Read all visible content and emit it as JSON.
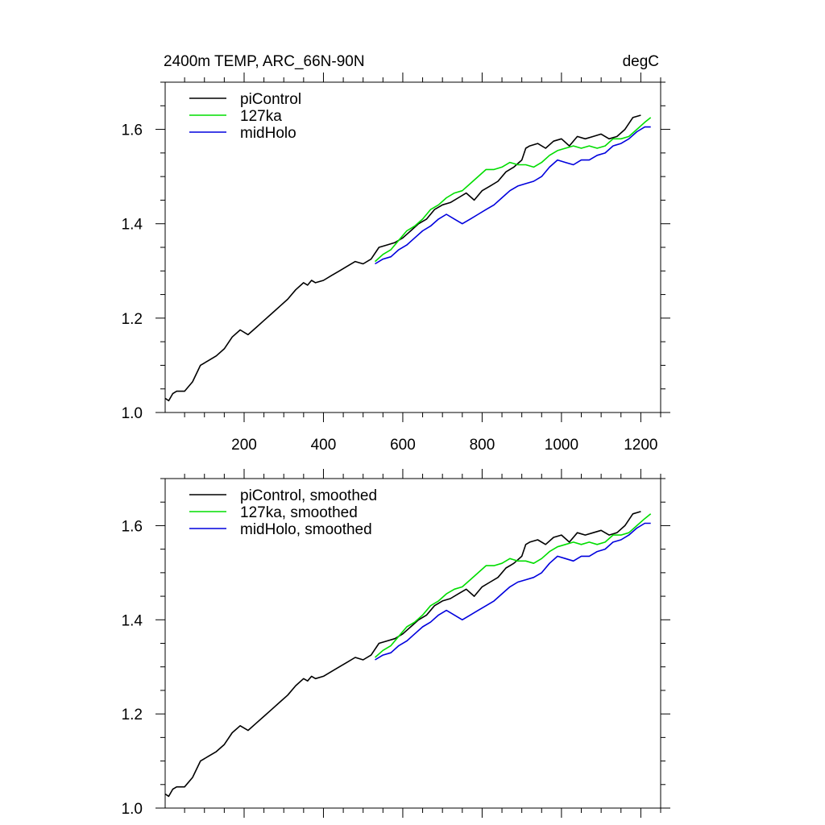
{
  "panels": [
    {
      "title_left": "2400m TEMP, ARC_66N-90N",
      "title_right": "degC",
      "legend": [
        "piControl",
        "127ka",
        "midHolo"
      ]
    },
    {
      "title_left": "",
      "title_right": "",
      "legend": [
        "piControl, smoothed",
        "127ka, smoothed",
        "midHolo, smoothed"
      ]
    }
  ],
  "chart_data": [
    {
      "type": "line",
      "title": "2400m TEMP, ARC_66N-90N",
      "units": "degC",
      "xlim": [
        1,
        1250
      ],
      "ylim": [
        1.0,
        1.7
      ],
      "xticks": [
        200,
        400,
        600,
        800,
        1000,
        1200
      ],
      "xtick_labels": [
        "200",
        "400",
        "600",
        "800",
        "1000",
        "1200"
      ],
      "yticks": [
        1.0,
        1.2,
        1.4,
        1.6
      ],
      "ytick_labels": [
        "1.0",
        "1.2",
        "1.4",
        "1.6"
      ],
      "legend_position": "top-left",
      "series": [
        {
          "name": "piControl",
          "color": "#000000",
          "x": [
            1,
            10,
            20,
            30,
            50,
            70,
            90,
            110,
            130,
            150,
            170,
            190,
            210,
            230,
            250,
            270,
            290,
            310,
            330,
            350,
            360,
            370,
            380,
            400,
            420,
            440,
            460,
            480,
            500,
            520,
            540,
            560,
            580,
            600,
            620,
            640,
            660,
            680,
            700,
            720,
            740,
            760,
            780,
            800,
            820,
            840,
            860,
            880,
            900,
            910,
            920,
            940,
            960,
            980,
            1000,
            1020,
            1040,
            1060,
            1080,
            1100,
            1120,
            1140,
            1160,
            1180,
            1200
          ],
          "y": [
            1.03,
            1.025,
            1.04,
            1.045,
            1.045,
            1.065,
            1.1,
            1.11,
            1.12,
            1.135,
            1.16,
            1.175,
            1.165,
            1.18,
            1.195,
            1.21,
            1.225,
            1.24,
            1.26,
            1.275,
            1.27,
            1.28,
            1.275,
            1.28,
            1.29,
            1.3,
            1.31,
            1.32,
            1.315,
            1.325,
            1.35,
            1.355,
            1.36,
            1.37,
            1.385,
            1.4,
            1.41,
            1.43,
            1.44,
            1.445,
            1.455,
            1.465,
            1.45,
            1.47,
            1.48,
            1.49,
            1.51,
            1.52,
            1.535,
            1.56,
            1.565,
            1.57,
            1.56,
            1.575,
            1.58,
            1.565,
            1.585,
            1.58,
            1.585,
            1.59,
            1.58,
            1.585,
            1.6,
            1.625,
            1.63
          ]
        },
        {
          "name": "127ka",
          "color": "#00dd00",
          "x": [
            530,
            550,
            570,
            590,
            610,
            630,
            650,
            670,
            690,
            710,
            730,
            750,
            770,
            790,
            810,
            830,
            850,
            870,
            890,
            910,
            930,
            950,
            970,
            990,
            1010,
            1030,
            1050,
            1070,
            1090,
            1110,
            1130,
            1150,
            1170,
            1190,
            1210,
            1225
          ],
          "y": [
            1.32,
            1.335,
            1.345,
            1.365,
            1.385,
            1.395,
            1.41,
            1.43,
            1.44,
            1.455,
            1.465,
            1.47,
            1.485,
            1.5,
            1.515,
            1.515,
            1.52,
            1.53,
            1.525,
            1.525,
            1.52,
            1.53,
            1.545,
            1.555,
            1.56,
            1.565,
            1.56,
            1.565,
            1.56,
            1.565,
            1.58,
            1.58,
            1.585,
            1.6,
            1.615,
            1.625
          ]
        },
        {
          "name": "midHolo",
          "color": "#0000dd",
          "x": [
            530,
            550,
            570,
            590,
            610,
            630,
            650,
            670,
            690,
            710,
            730,
            750,
            770,
            790,
            810,
            830,
            850,
            870,
            890,
            910,
            930,
            950,
            970,
            990,
            1010,
            1030,
            1050,
            1070,
            1090,
            1110,
            1130,
            1150,
            1170,
            1190,
            1210,
            1225
          ],
          "y": [
            1.315,
            1.325,
            1.33,
            1.345,
            1.355,
            1.37,
            1.385,
            1.395,
            1.41,
            1.42,
            1.41,
            1.4,
            1.41,
            1.42,
            1.43,
            1.44,
            1.455,
            1.47,
            1.48,
            1.485,
            1.49,
            1.5,
            1.52,
            1.535,
            1.53,
            1.525,
            1.535,
            1.535,
            1.545,
            1.55,
            1.565,
            1.57,
            1.58,
            1.595,
            1.605,
            1.605
          ]
        }
      ]
    },
    {
      "type": "line",
      "title": "",
      "xlim": [
        1,
        1250
      ],
      "ylim": [
        1.0,
        1.7
      ],
      "xticks": [
        200,
        400,
        600,
        800,
        1000,
        1200
      ],
      "yticks": [
        1.0,
        1.2,
        1.4,
        1.6
      ],
      "ytick_labels": [
        "1.0",
        "1.2",
        "1.4",
        "1.6"
      ],
      "legend_position": "top-left",
      "series": [
        {
          "name": "piControl, smoothed",
          "color": "#000000",
          "x": [
            1,
            10,
            20,
            30,
            50,
            70,
            90,
            110,
            130,
            150,
            170,
            190,
            210,
            230,
            250,
            270,
            290,
            310,
            330,
            350,
            360,
            370,
            380,
            400,
            420,
            440,
            460,
            480,
            500,
            520,
            540,
            560,
            580,
            600,
            620,
            640,
            660,
            680,
            700,
            720,
            740,
            760,
            780,
            800,
            820,
            840,
            860,
            880,
            900,
            910,
            920,
            940,
            960,
            980,
            1000,
            1020,
            1040,
            1060,
            1080,
            1100,
            1120,
            1140,
            1160,
            1180,
            1200
          ],
          "y": [
            1.03,
            1.025,
            1.04,
            1.045,
            1.045,
            1.065,
            1.1,
            1.11,
            1.12,
            1.135,
            1.16,
            1.175,
            1.165,
            1.18,
            1.195,
            1.21,
            1.225,
            1.24,
            1.26,
            1.275,
            1.27,
            1.28,
            1.275,
            1.28,
            1.29,
            1.3,
            1.31,
            1.32,
            1.315,
            1.325,
            1.35,
            1.355,
            1.36,
            1.37,
            1.385,
            1.4,
            1.41,
            1.43,
            1.44,
            1.445,
            1.455,
            1.465,
            1.45,
            1.47,
            1.48,
            1.49,
            1.51,
            1.52,
            1.535,
            1.56,
            1.565,
            1.57,
            1.56,
            1.575,
            1.58,
            1.565,
            1.585,
            1.58,
            1.585,
            1.59,
            1.58,
            1.585,
            1.6,
            1.625,
            1.63
          ]
        },
        {
          "name": "127ka, smoothed",
          "color": "#00dd00",
          "x": [
            530,
            550,
            570,
            590,
            610,
            630,
            650,
            670,
            690,
            710,
            730,
            750,
            770,
            790,
            810,
            830,
            850,
            870,
            890,
            910,
            930,
            950,
            970,
            990,
            1010,
            1030,
            1050,
            1070,
            1090,
            1110,
            1130,
            1150,
            1170,
            1190,
            1210,
            1225
          ],
          "y": [
            1.32,
            1.335,
            1.345,
            1.365,
            1.385,
            1.395,
            1.41,
            1.43,
            1.44,
            1.455,
            1.465,
            1.47,
            1.485,
            1.5,
            1.515,
            1.515,
            1.52,
            1.53,
            1.525,
            1.525,
            1.52,
            1.53,
            1.545,
            1.555,
            1.56,
            1.565,
            1.56,
            1.565,
            1.56,
            1.565,
            1.58,
            1.58,
            1.585,
            1.6,
            1.615,
            1.625
          ]
        },
        {
          "name": "midHolo, smoothed",
          "color": "#0000dd",
          "x": [
            530,
            550,
            570,
            590,
            610,
            630,
            650,
            670,
            690,
            710,
            730,
            750,
            770,
            790,
            810,
            830,
            850,
            870,
            890,
            910,
            930,
            950,
            970,
            990,
            1010,
            1030,
            1050,
            1070,
            1090,
            1110,
            1130,
            1150,
            1170,
            1190,
            1210,
            1225
          ],
          "y": [
            1.315,
            1.325,
            1.33,
            1.345,
            1.355,
            1.37,
            1.385,
            1.395,
            1.41,
            1.42,
            1.41,
            1.4,
            1.41,
            1.42,
            1.43,
            1.44,
            1.455,
            1.47,
            1.48,
            1.485,
            1.49,
            1.5,
            1.52,
            1.535,
            1.53,
            1.525,
            1.535,
            1.535,
            1.545,
            1.55,
            1.565,
            1.57,
            1.58,
            1.595,
            1.605,
            1.605
          ]
        }
      ]
    }
  ]
}
